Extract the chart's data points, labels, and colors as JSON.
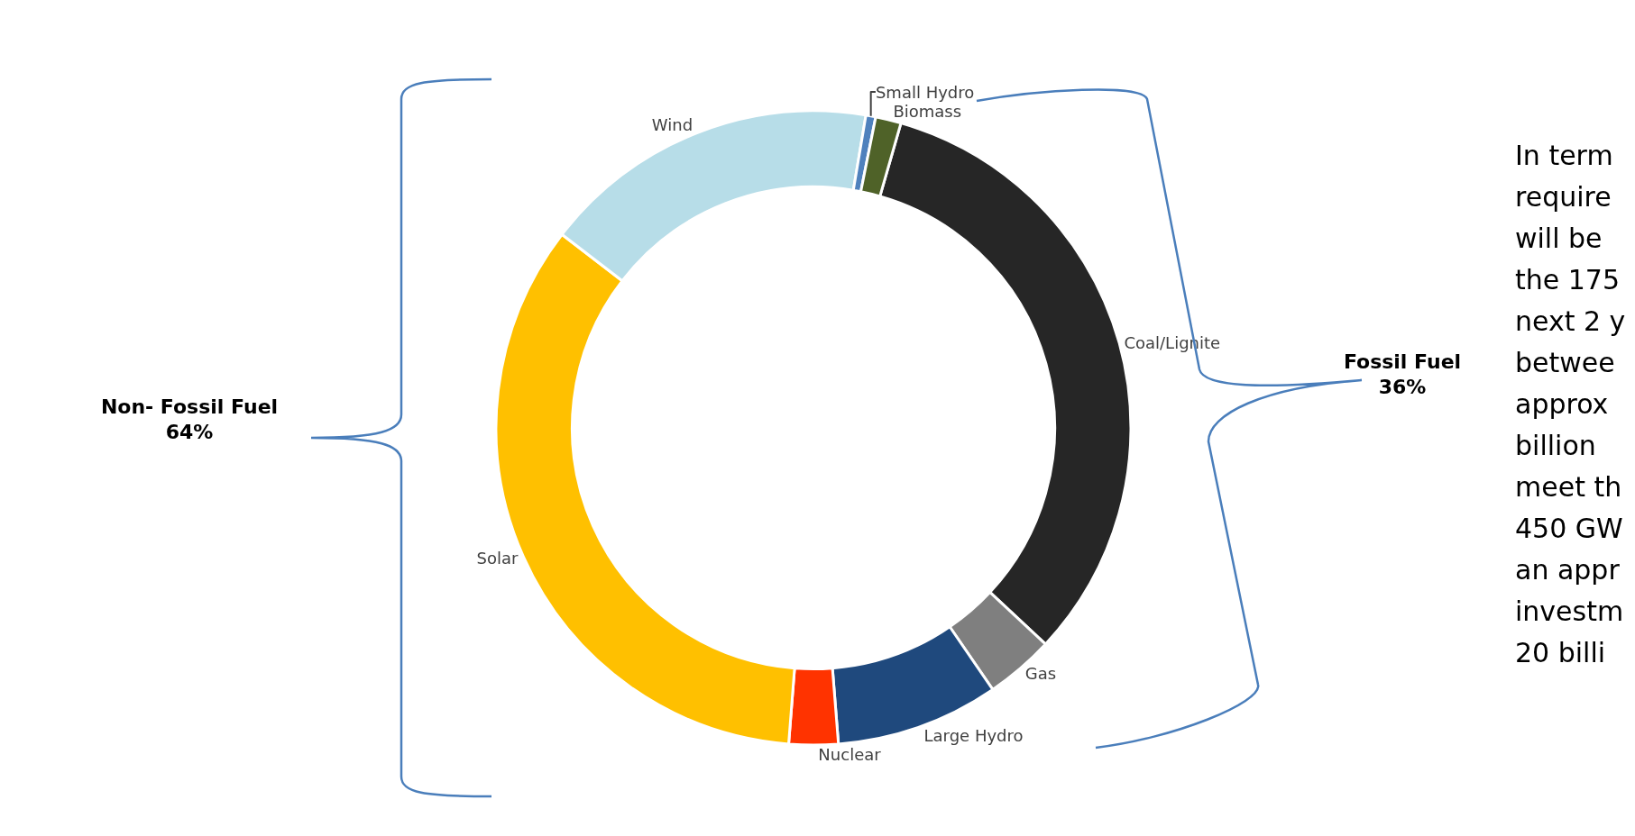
{
  "chart_data": {
    "type": "donut",
    "categories": [
      "Coal/Lignite",
      "Gas",
      "Large Hydro",
      "Nuclear",
      "Solar",
      "Wind",
      "Small Hydro",
      "Biomass"
    ],
    "values": [
      32.5,
      3.5,
      8.3,
      2.5,
      34.2,
      17.2,
      0.5,
      1.3
    ],
    "colors": [
      "#262626",
      "#7f7f7f",
      "#1f497d",
      "#ff3300",
      "#ffc000",
      "#b7dde8",
      "#4f81bd",
      "#4f6228"
    ],
    "annotations": [
      "Non- Fossil Fuel\n64%",
      "Fossil Fuel\n36%",
      "In term\nrequire\nwill be\nthe 175\nnext 2 y\nbetwee\napprox\nbillion\nmeet th\n450 GW\nan appr\ninvestm\n20 billi"
    ]
  }
}
